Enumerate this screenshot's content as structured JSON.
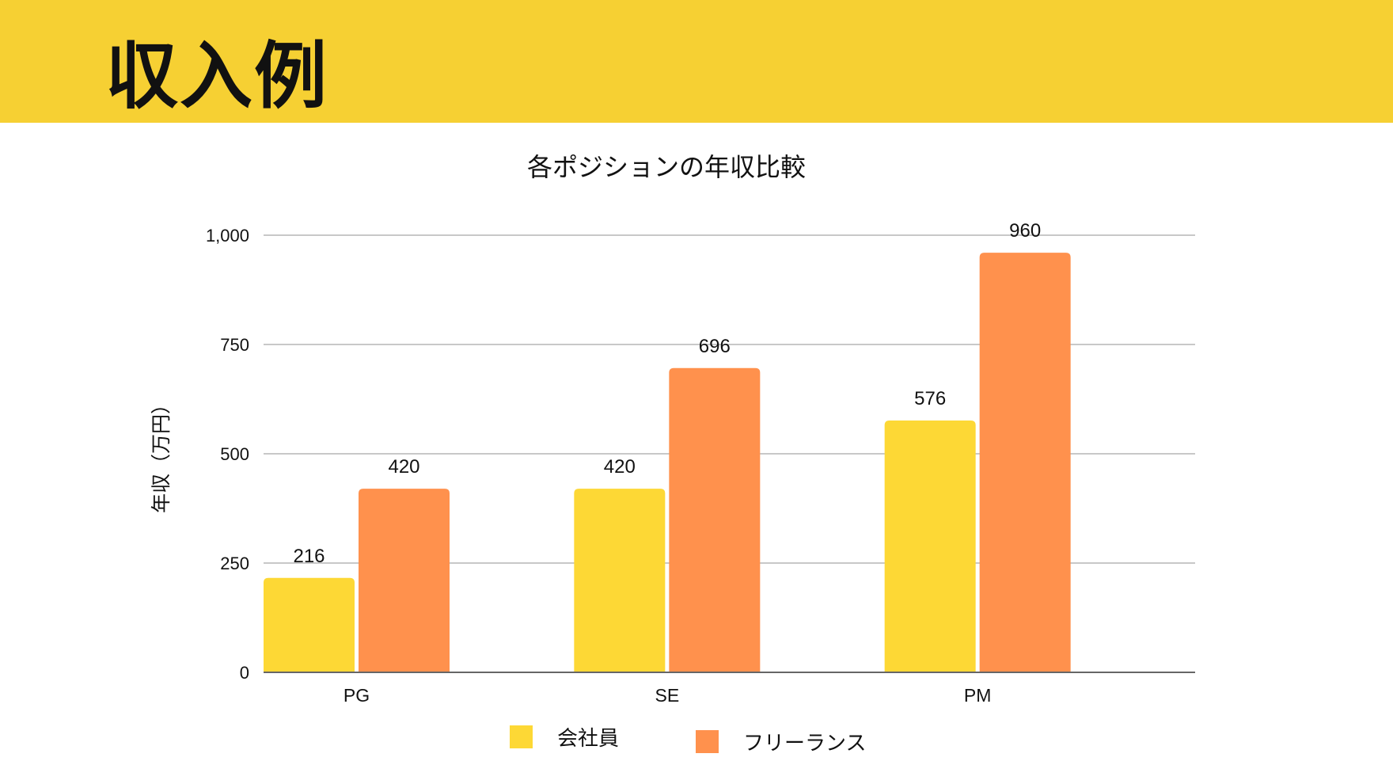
{
  "header": {
    "title": "収入例"
  },
  "colors": {
    "header_bg": "#F6D033",
    "company": "#FDD835",
    "freelance": "#FF914D"
  },
  "chart_data": {
    "type": "bar",
    "title": "各ポジションの年収比較",
    "xlabel": "",
    "ylabel": "年収（万円）",
    "ylim": [
      0,
      1000
    ],
    "yticks": [
      0,
      250,
      500,
      750,
      1000
    ],
    "ytick_labels": [
      "0",
      "250",
      "500",
      "750",
      "1,000"
    ],
    "categories": [
      "PG",
      "SE",
      "PM"
    ],
    "series": [
      {
        "name": "会社員",
        "values": [
          216,
          420,
          576
        ]
      },
      {
        "name": "フリーランス",
        "values": [
          420,
          696,
          960
        ]
      }
    ],
    "grid": true,
    "legend_position": "bottom"
  }
}
